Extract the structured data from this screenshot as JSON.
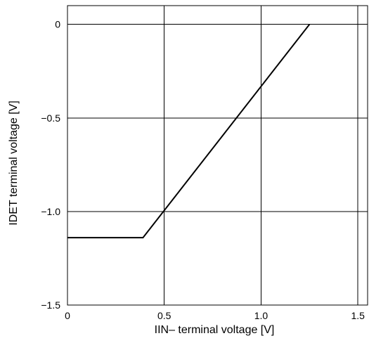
{
  "chart_data": {
    "type": "line",
    "xlabel": "IIN– terminal voltage [V]",
    "ylabel": "IDET terminal voltage [V]",
    "xlim": [
      0,
      1.55
    ],
    "ylim": [
      -1.5,
      0.1
    ],
    "x_ticks": [
      {
        "value": 0,
        "label": "0"
      },
      {
        "value": 0.5,
        "label": "0.5"
      },
      {
        "value": 1.0,
        "label": "1.0"
      },
      {
        "value": 1.5,
        "label": "1.5"
      }
    ],
    "y_ticks": [
      {
        "value": 0,
        "label": "0"
      },
      {
        "value": -0.5,
        "label": "−0.5"
      },
      {
        "value": -1.0,
        "label": "−1.0"
      },
      {
        "value": -1.5,
        "label": "−1.5"
      }
    ],
    "grid": true,
    "series": [
      {
        "x": [
          0,
          0.39,
          1.25
        ],
        "y": [
          -1.14,
          -1.14,
          0
        ]
      }
    ]
  }
}
